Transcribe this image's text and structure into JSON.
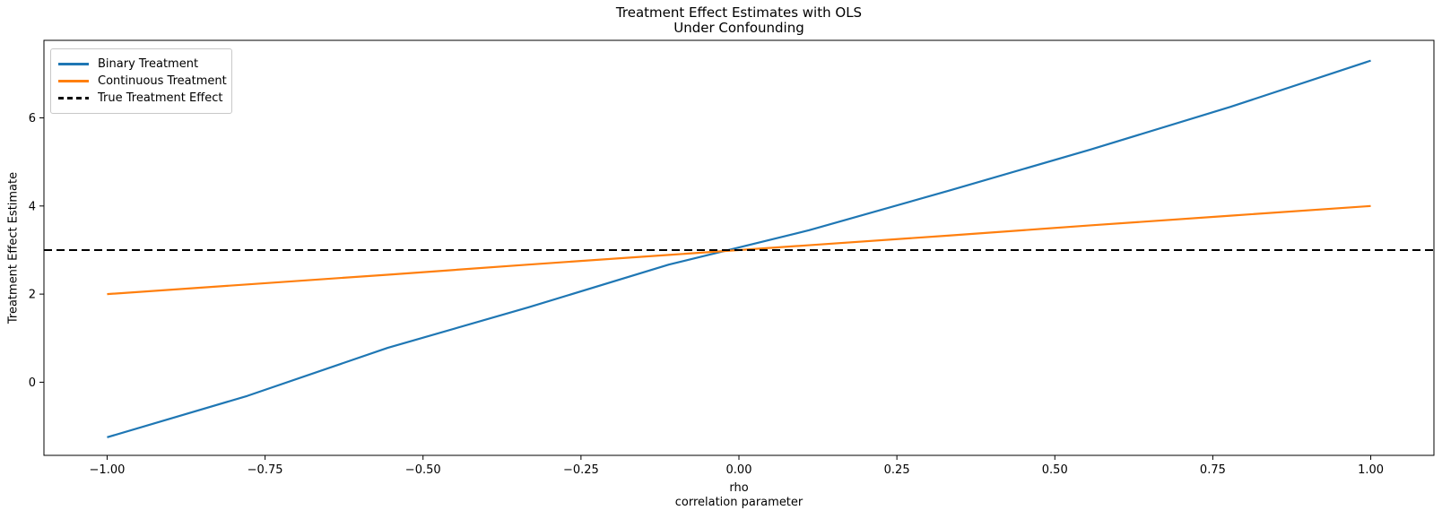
{
  "chart_data": {
    "type": "line",
    "title": "Treatment Effect Estimates with OLS\nUnder Confounding",
    "title_lines": [
      "Treatment Effect Estimates with OLS",
      "Under Confounding"
    ],
    "xlabel": "rho\ncorrelation parameter",
    "xlabel_lines": [
      "rho",
      "correlation parameter"
    ],
    "ylabel": "Treatment Effect Estimate",
    "xlim": [
      -1.1,
      1.1
    ],
    "ylim": [
      -1.66,
      7.76
    ],
    "grid": false,
    "legend_position": "upper left",
    "xticks": [
      -1.0,
      -0.75,
      -0.5,
      -0.25,
      0.0,
      0.25,
      0.5,
      0.75,
      1.0
    ],
    "xtick_labels": [
      "−1.00",
      "−0.75",
      "−0.50",
      "−0.25",
      "0.00",
      "0.25",
      "0.50",
      "0.75",
      "1.00"
    ],
    "yticks": [
      0,
      2,
      4,
      6
    ],
    "ytick_labels": [
      "0",
      "2",
      "4",
      "6"
    ],
    "x": [
      -1.0,
      -0.778,
      -0.556,
      -0.333,
      -0.111,
      0.111,
      0.333,
      0.556,
      0.778,
      1.0
    ],
    "series": [
      {
        "name": "Binary Treatment",
        "color": "#1f77b4",
        "style": "solid",
        "values": [
          -1.25,
          -0.31,
          0.78,
          1.7,
          2.67,
          3.45,
          4.35,
          5.28,
          6.25,
          7.3
        ]
      },
      {
        "name": "Continuous Treatment",
        "color": "#ff7f0e",
        "style": "solid",
        "values": [
          2.0,
          2.22,
          2.44,
          2.67,
          2.89,
          3.11,
          3.33,
          3.56,
          3.78,
          4.0
        ]
      },
      {
        "name": "True Treatment Effect",
        "color": "#000000",
        "style": "dashed",
        "value": 3,
        "full_width": true
      }
    ]
  }
}
